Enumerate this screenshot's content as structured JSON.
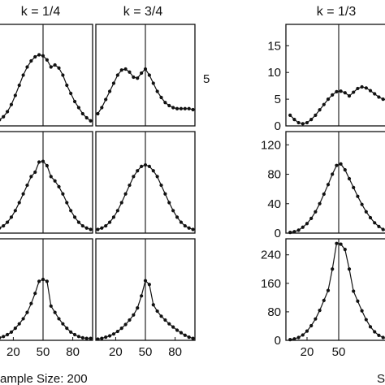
{
  "figure": {
    "row_labels": [
      "5"
    ],
    "footer_left": "ample Size: 200",
    "footer_right": "S"
  },
  "colors": {
    "line": "#111111",
    "marker": "#111111",
    "frame": "#111111",
    "background": "#ffffff"
  },
  "chart_data": [
    {
      "type": "line",
      "panel": "left-top-1",
      "column_title": "k = 1/4",
      "x": [
        2,
        6,
        10,
        14,
        18,
        22,
        26,
        30,
        34,
        38,
        42,
        46,
        50,
        54,
        58,
        62,
        66,
        70,
        74,
        78,
        82,
        86,
        90,
        94,
        98
      ],
      "series": [
        {
          "values": [
            0.5,
            0.6,
            0.9,
            1.4,
            2.1,
            3.0,
            4.0,
            5.0,
            5.8,
            6.4,
            6.8,
            7.0,
            6.9,
            6.5,
            5.8,
            6.0,
            5.7,
            5.0,
            4.0,
            3.2,
            2.4,
            1.8,
            1.2,
            0.8,
            0.5
          ]
        }
      ],
      "ylim": [
        0,
        10
      ],
      "xlim": [
        0,
        100
      ],
      "show_x_ticks": false
    },
    {
      "type": "line",
      "panel": "left-top-2",
      "column_title": "k = 3/4",
      "x": [
        2,
        6,
        10,
        14,
        18,
        22,
        26,
        30,
        34,
        38,
        42,
        46,
        50,
        54,
        58,
        62,
        66,
        70,
        74,
        78,
        82,
        86,
        90,
        94,
        98
      ],
      "series": [
        {
          "values": [
            1.2,
            1.8,
            2.6,
            3.4,
            4.2,
            5.0,
            5.5,
            5.6,
            5.3,
            4.8,
            4.7,
            5.2,
            5.6,
            5.0,
            4.2,
            3.4,
            2.8,
            2.3,
            2.0,
            1.8,
            1.7,
            1.7,
            1.7,
            1.7,
            1.6
          ]
        }
      ],
      "ylim": [
        0,
        10
      ],
      "xlim": [
        0,
        100
      ],
      "show_x_ticks": false
    },
    {
      "type": "line",
      "panel": "left-middle-1",
      "x": [
        2,
        6,
        10,
        14,
        18,
        22,
        26,
        30,
        34,
        38,
        42,
        46,
        50,
        54,
        58,
        62,
        66,
        70,
        74,
        78,
        82,
        86,
        90,
        94,
        98
      ],
      "series": [
        {
          "values": [
            0.5,
            0.7,
            1.0,
            1.5,
            2.2,
            3.1,
            4.2,
            5.4,
            6.6,
            7.8,
            8.4,
            9.8,
            9.9,
            9.3,
            7.8,
            7.2,
            6.4,
            5.4,
            4.2,
            3.1,
            2.2,
            1.5,
            1.0,
            0.7,
            0.5
          ]
        }
      ],
      "ylim": [
        0,
        14
      ],
      "xlim": [
        0,
        100
      ],
      "show_x_ticks": false
    },
    {
      "type": "line",
      "panel": "left-middle-2",
      "x": [
        2,
        6,
        10,
        14,
        18,
        22,
        26,
        30,
        34,
        38,
        42,
        46,
        50,
        54,
        58,
        62,
        66,
        70,
        74,
        78,
        82,
        86,
        90,
        94,
        98
      ],
      "series": [
        {
          "values": [
            0.5,
            0.7,
            1.0,
            1.5,
            2.2,
            3.1,
            4.2,
            5.4,
            6.6,
            7.8,
            8.6,
            9.2,
            9.4,
            9.2,
            8.6,
            7.8,
            6.6,
            5.4,
            4.2,
            3.1,
            2.2,
            1.5,
            1.0,
            0.7,
            0.5
          ]
        }
      ],
      "ylim": [
        0,
        14
      ],
      "xlim": [
        0,
        100
      ],
      "show_x_ticks": false
    },
    {
      "type": "line",
      "panel": "left-bottom-1",
      "x": [
        2,
        6,
        10,
        14,
        18,
        22,
        26,
        30,
        34,
        38,
        42,
        46,
        50,
        54,
        58,
        62,
        66,
        70,
        74,
        78,
        82,
        86,
        90,
        94,
        98
      ],
      "series": [
        {
          "values": [
            0.3,
            0.4,
            0.6,
            0.9,
            1.3,
            1.9,
            2.6,
            3.4,
            4.4,
            5.8,
            7.4,
            9.3,
            9.6,
            9.3,
            5.4,
            4.4,
            3.4,
            2.6,
            1.9,
            1.3,
            0.9,
            0.6,
            0.4,
            0.3,
            0.3
          ]
        }
      ],
      "ylim": [
        0,
        16
      ],
      "xlim": [
        0,
        100
      ],
      "xticks": [
        20,
        50,
        80
      ]
    },
    {
      "type": "line",
      "panel": "left-bottom-2",
      "x": [
        2,
        6,
        10,
        14,
        18,
        22,
        26,
        30,
        34,
        38,
        42,
        46,
        50,
        54,
        58,
        62,
        66,
        70,
        74,
        78,
        82,
        86,
        90,
        94,
        98
      ],
      "series": [
        {
          "values": [
            0.2,
            0.3,
            0.5,
            0.7,
            1.0,
            1.4,
            1.9,
            2.5,
            3.2,
            4.0,
            5.1,
            7.0,
            9.4,
            8.8,
            5.6,
            4.6,
            3.8,
            3.2,
            2.6,
            2.1,
            1.6,
            1.2,
            0.8,
            0.5,
            0.3
          ]
        }
      ],
      "ylim": [
        0,
        16
      ],
      "xlim": [
        0,
        100
      ],
      "xticks": [
        20,
        50,
        80
      ]
    },
    {
      "type": "line",
      "panel": "right-top",
      "column_title": "k = 1/3",
      "x": [
        4,
        8,
        12,
        16,
        20,
        24,
        28,
        32,
        36,
        40,
        44,
        48,
        52,
        56,
        60,
        64,
        68,
        72,
        76,
        80,
        84,
        88,
        92,
        96,
        100
      ],
      "series": [
        {
          "values": [
            2.0,
            1.2,
            0.6,
            0.4,
            0.6,
            1.2,
            2.0,
            3.0,
            4.0,
            5.0,
            5.8,
            6.4,
            6.5,
            6.2,
            5.6,
            6.3,
            7.0,
            7.3,
            7.1,
            6.6,
            6.0,
            5.4,
            5.0,
            4.8,
            4.6
          ]
        }
      ],
      "ylim": [
        0,
        19
      ],
      "yticks": [
        0,
        5,
        10,
        15
      ],
      "xlim": [
        0,
        100
      ],
      "show_x_ticks": false
    },
    {
      "type": "line",
      "panel": "right-middle",
      "x": [
        4,
        8,
        12,
        16,
        20,
        24,
        28,
        32,
        36,
        40,
        44,
        48,
        52,
        56,
        60,
        64,
        68,
        72,
        76,
        80,
        84,
        88,
        92,
        96,
        100
      ],
      "series": [
        {
          "values": [
            1,
            2,
            4,
            8,
            13,
            20,
            29,
            40,
            53,
            66,
            80,
            92,
            94,
            86,
            74,
            62,
            50,
            39,
            29,
            21,
            14,
            9,
            5,
            3,
            2
          ]
        }
      ],
      "ylim": [
        0,
        138
      ],
      "yticks": [
        0,
        40,
        80,
        120
      ],
      "xlim": [
        0,
        100
      ],
      "show_x_ticks": false
    },
    {
      "type": "line",
      "panel": "right-bottom",
      "x": [
        4,
        8,
        12,
        16,
        20,
        24,
        28,
        32,
        36,
        40,
        44,
        48,
        52,
        56,
        60,
        64,
        68,
        72,
        76,
        80,
        84,
        88,
        92,
        96,
        100
      ],
      "series": [
        {
          "values": [
            2,
            4,
            8,
            15,
            26,
            41,
            60,
            84,
            112,
            140,
            200,
            272,
            270,
            255,
            200,
            138,
            110,
            83,
            58,
            38,
            24,
            14,
            8,
            4,
            2
          ]
        }
      ],
      "ylim": [
        0,
        285
      ],
      "yticks": [
        0,
        80,
        160,
        240
      ],
      "xlim": [
        0,
        100
      ],
      "xticks": [
        20,
        50
      ]
    }
  ]
}
